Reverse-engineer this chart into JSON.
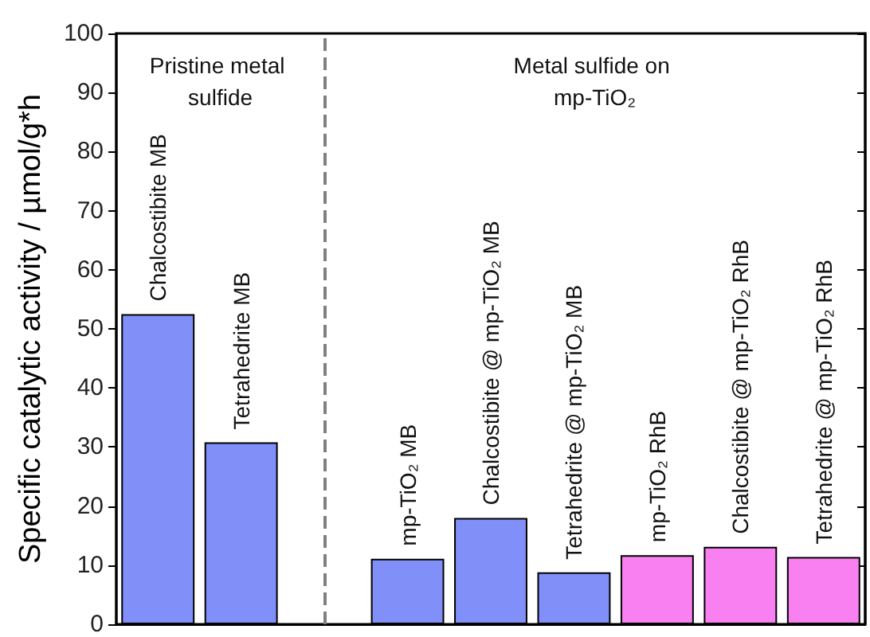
{
  "chart_data": {
    "type": "bar",
    "ylabel": "Specific catalytic activity / µmol/g*h",
    "categories": [
      "Chalcostibite MB",
      "Tetrahedrite MB",
      null,
      "mp-TiO₂ MB",
      "Chalcostibite @ mp-TiO₂ MB",
      "Tetrahedrite @ mp-TiO₂ MB",
      "mp-TiO₂ RhB",
      "Chalcostibite @ mp-TiO₂ RhB",
      "Tetrahedrite @ mp-TiO₂ RhB"
    ],
    "values": [
      52.5,
      30.8,
      null,
      11.1,
      18.0,
      8.8,
      11.7,
      13.1,
      11.4
    ],
    "colors": [
      "#8090f8",
      "#8090f8",
      null,
      "#8090f8",
      "#8090f8",
      "#8090f8",
      "#f880f0",
      "#f880f0",
      "#f880f0"
    ],
    "ylim": [
      0,
      100
    ],
    "yticks": [
      0,
      10,
      20,
      30,
      40,
      50,
      60,
      70,
      80,
      90,
      100
    ],
    "ref_lines": [
      {
        "axis": "x",
        "value": null,
        "line_style": "dashed",
        "color": "#808080"
      }
    ],
    "annotations": [
      "Pristine metal sulfide",
      "Metal sulfide on mp-TiO₂"
    ]
  }
}
